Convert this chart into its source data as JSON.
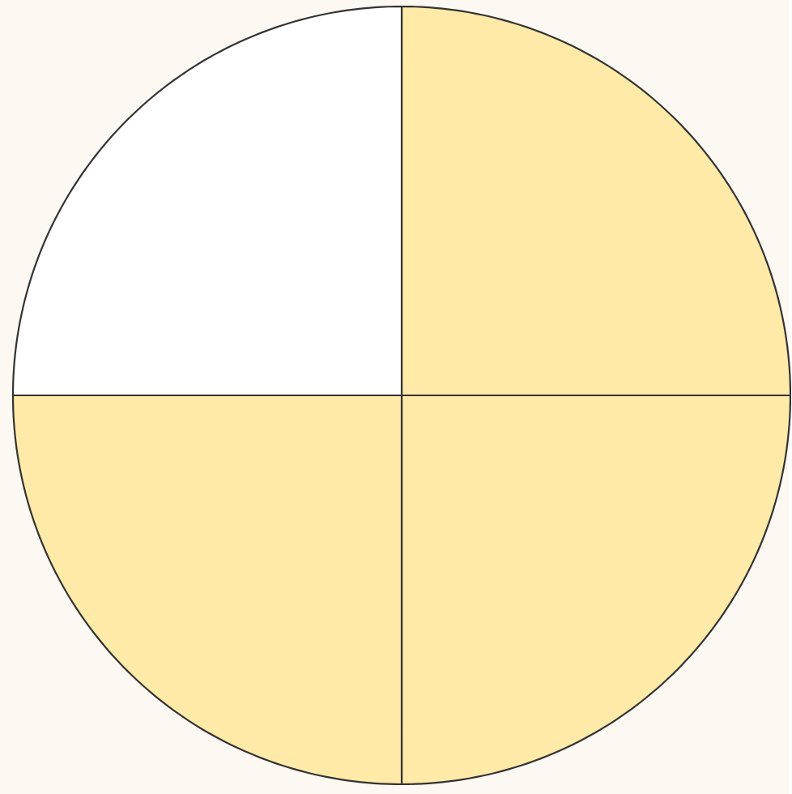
{
  "chart_data": {
    "type": "pie",
    "categories": [
      null,
      null,
      null,
      null
    ],
    "values": [
      25,
      25,
      25,
      25
    ],
    "colors": [
      "#ffeaa7",
      "#ffeaa7",
      "#ffeaa7",
      "#ffffff"
    ]
  }
}
